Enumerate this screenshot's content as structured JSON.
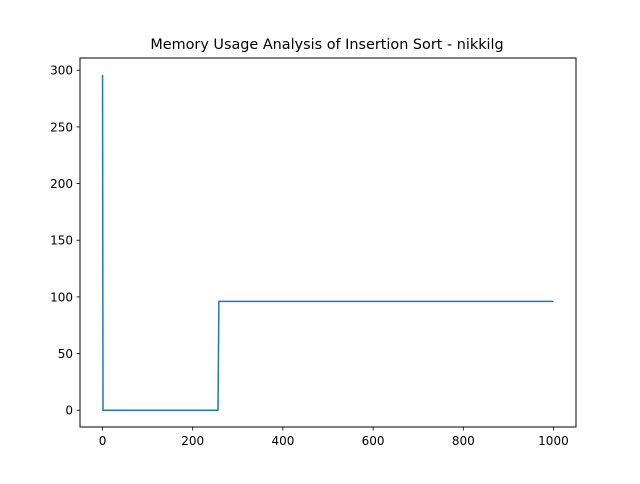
{
  "chart_data": {
    "type": "line",
    "title": "Memory Usage Analysis of Insertion Sort - nikkilg",
    "xlabel": "",
    "ylabel": "",
    "xlim": [
      -50,
      1050
    ],
    "ylim": [
      -14.8,
      310.8
    ],
    "grid": false,
    "line_color": "#1f77b4",
    "x_ticks": [
      0,
      200,
      400,
      600,
      800,
      1000
    ],
    "y_ticks": [
      0,
      50,
      100,
      150,
      200,
      250,
      300
    ],
    "series": [
      {
        "x": [
          0,
          1,
          2,
          256,
          257,
          258,
          1000
        ],
        "y": [
          296,
          0,
          0,
          0,
          48,
          96,
          96
        ]
      }
    ]
  }
}
